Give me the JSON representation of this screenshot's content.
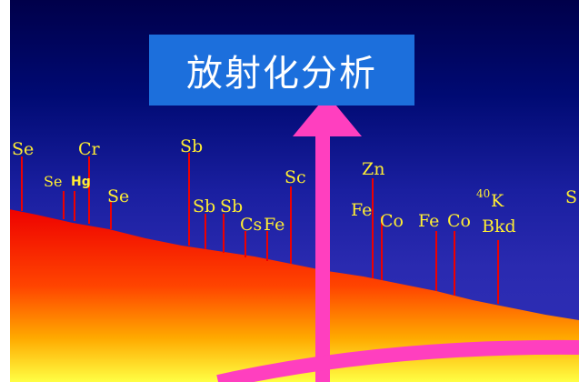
{
  "title": "放射化分析",
  "spectrum_labels": {
    "se1": "Se",
    "cr": "Cr",
    "sb1": "Sb",
    "se2": "Se",
    "hg": "Hg",
    "se3": "Se",
    "sc": "Sc",
    "sb2": "Sb",
    "sb3": "Sb",
    "cs": "Cs",
    "fe1": "Fe",
    "zn": "Zn",
    "fe2": "Fe",
    "co1": "Co",
    "fe3": "Fe",
    "co2": "Co",
    "k40_mass": "40",
    "k40_symbol": "K",
    "bkd": "Bkd",
    "edge": "S"
  },
  "colors": {
    "background_top": "#00004a",
    "background_bottom": "#3030b8",
    "title_box": "#1c6fdc",
    "label": "#ffee33",
    "spectrum_top": "#ee0000",
    "spectrum_bottom": "#ffff44",
    "arrow": "#ff3fbf"
  }
}
